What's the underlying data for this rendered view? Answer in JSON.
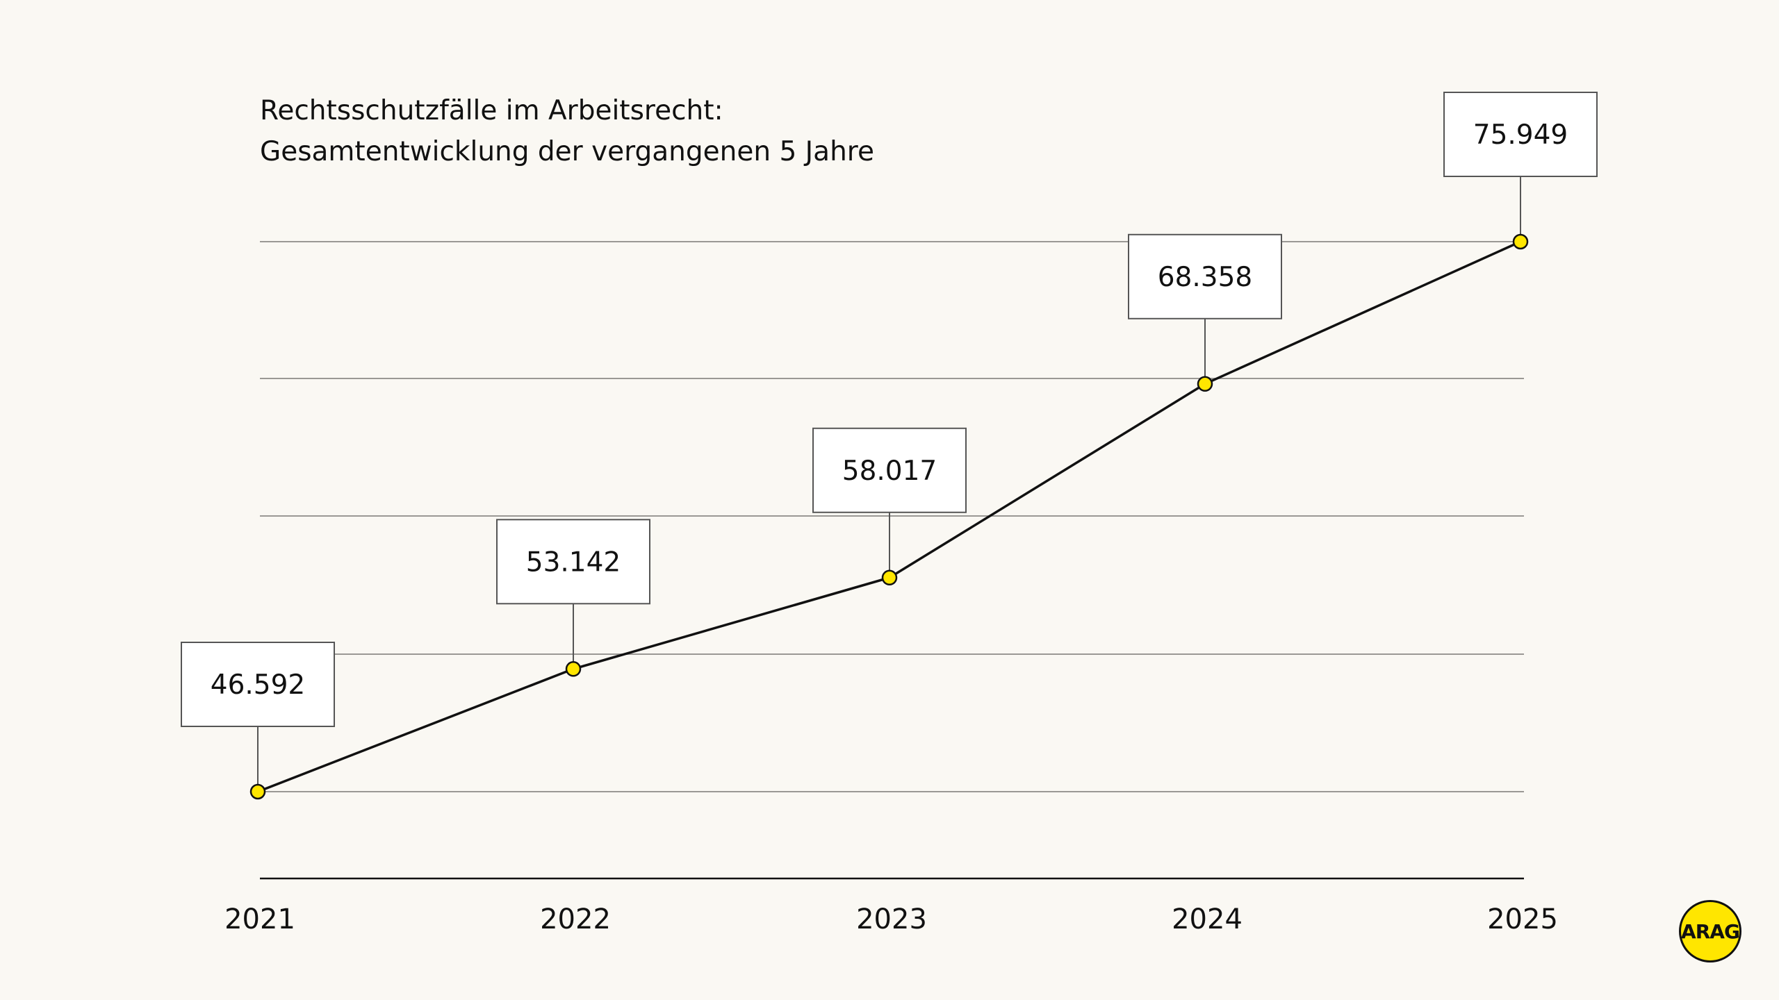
{
  "chart_data": {
    "type": "line",
    "title": "Rechtsschutzfälle im Arbeitsrecht:",
    "subtitle": "Gesamtentwicklung der vergangenen 5 Jahre",
    "categories": [
      "2021",
      "2022",
      "2023",
      "2024",
      "2025"
    ],
    "values": [
      46592,
      53142,
      58017,
      68358,
      75949
    ],
    "data_labels": [
      "46.592",
      "53.142",
      "58.017",
      "68.358",
      "75.949"
    ],
    "xlabel": "",
    "ylabel": "",
    "grid": true,
    "line_color": "#111111",
    "marker_color": "#ffe600"
  },
  "logo": {
    "text": "ARAG",
    "color": "#ffe600"
  }
}
